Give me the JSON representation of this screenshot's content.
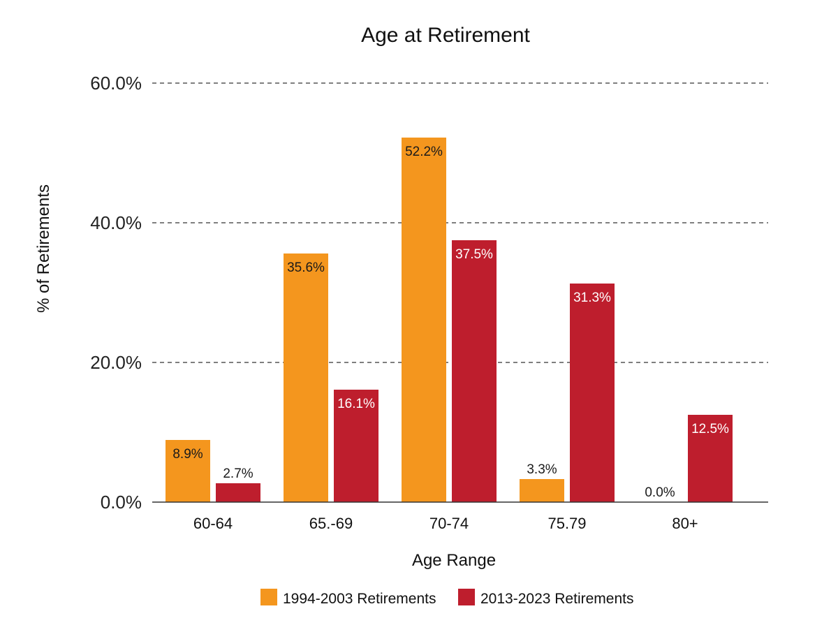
{
  "chart_data": {
    "type": "bar",
    "title": "Age at Retirement",
    "xlabel": "Age Range",
    "ylabel": "% of Retirements",
    "ylim": [
      0,
      60
    ],
    "yticks": [
      "0.0%",
      "20.0%",
      "40.0%",
      "60.0%"
    ],
    "ytick_values": [
      0,
      20,
      40,
      60
    ],
    "grid": "horizontal dashed",
    "legend_position": "bottom",
    "categories": [
      "60-64",
      "65.-69",
      "70-74",
      "75.79",
      "80+"
    ],
    "series": [
      {
        "name": "1994-2003 Retirements",
        "color": "#F4961E",
        "values": [
          8.9,
          35.6,
          52.2,
          3.3,
          0.0
        ],
        "labels": [
          "8.9%",
          "35.6%",
          "52.2%",
          "3.3%",
          "0.0%"
        ]
      },
      {
        "name": "2013-2023 Retirements",
        "color": "#BE1E2D",
        "values": [
          2.7,
          16.1,
          37.5,
          31.3,
          12.5
        ],
        "labels": [
          "2.7%",
          "16.1%",
          "37.5%",
          "31.3%",
          "12.5%"
        ]
      }
    ]
  }
}
